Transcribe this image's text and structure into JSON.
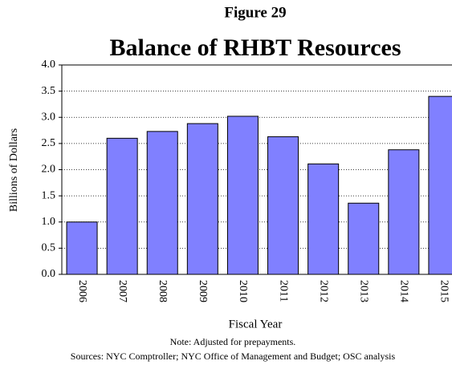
{
  "chart_data": {
    "type": "bar",
    "title": "Figure 29",
    "subtitle": "Balance of RHBT Resources",
    "y_label": "Billions of Dollars",
    "x_label": "Fiscal Year",
    "note": "Note: Adjusted for prepayments.",
    "source": "Sources: NYC Comptroller; NYC Office of Management and Budget; OSC analysis",
    "categories": [
      "2006",
      "2007",
      "2008",
      "2009",
      "2010",
      "2011",
      "2012",
      "2013",
      "2014",
      "2015"
    ],
    "values": [
      1.0,
      2.6,
      2.73,
      2.88,
      3.02,
      2.63,
      2.11,
      1.36,
      2.38,
      3.4
    ],
    "color": "#8080ff",
    "ylim": [
      0,
      4
    ],
    "yticks": [
      {
        "value": 0,
        "label": "0.0"
      },
      0.5,
      {
        "value": 1,
        "label": "1.0"
      },
      1.5,
      {
        "value": 2,
        "label": "2.0"
      },
      2.5,
      {
        "value": 3,
        "label": "3.0"
      },
      3.5,
      {
        "value": 4,
        "label": "4.0"
      }
    ],
    "grid": true
  }
}
